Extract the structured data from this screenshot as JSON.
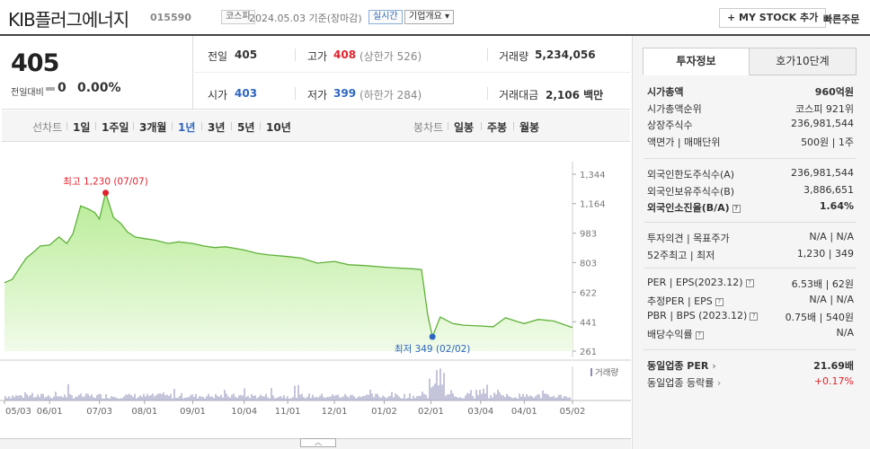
{
  "header": {
    "name": "KIB플러그에너지",
    "code": "015590",
    "market_tag": "코스피",
    "date": "2024.05.03",
    "date_suffix": "기준(장마감)",
    "live_tag": "실시간",
    "company_dropdown": "기업개요",
    "my_stock_button": "+ MY STOCK 추가",
    "quick_order": "빠른주문"
  },
  "quote": {
    "price": "405",
    "diff_label": "전일대비",
    "diff_value": "0",
    "diff_pct": "0.00%",
    "prev_label": "전일",
    "prev_value": "405",
    "high_label": "고가",
    "high_value": "408",
    "high_limit": "(상한가 526)",
    "volume_label": "거래량",
    "volume_value": "5,234,056",
    "open_label": "시가",
    "open_value": "403",
    "low_label": "저가",
    "low_value": "399",
    "low_limit": "(하한가 284)",
    "amount_label": "거래대금",
    "amount_value": "2,106 백만"
  },
  "period_tabs": {
    "line_label": "선차트",
    "line_items": [
      "1일",
      "1주일",
      "3개월",
      "1년",
      "3년",
      "5년",
      "10년"
    ],
    "selected": "1년",
    "candle_label": "봉차트",
    "candle_items": [
      "일봉",
      "주봉",
      "월봉"
    ]
  },
  "chart_data": {
    "type": "area",
    "title": "",
    "x_ticks": [
      "05/03",
      "06/01",
      "07/03",
      "08/01",
      "09/01",
      "10/04",
      "11/01",
      "12/01",
      "01/02",
      "02/01",
      "03/04",
      "04/01",
      "05/02"
    ],
    "y_ticks": [
      "1,344",
      "1,164",
      "983",
      "803",
      "622",
      "441",
      "261"
    ],
    "ylim": [
      261,
      1344
    ],
    "volume_label": "거래량",
    "max_label": "최고 1,230 (07/07)",
    "min_label": "최저 349 (02/02)",
    "max_value": 1230,
    "min_value": 349,
    "color_line": "#5fb13a",
    "color_fill_top": "#b8ec96",
    "color_fill_bottom": "#f1fbe9",
    "price_series": [
      [
        "2023-05-03",
        680
      ],
      [
        "2023-05-08",
        700
      ],
      [
        "2023-05-12",
        760
      ],
      [
        "2023-05-17",
        830
      ],
      [
        "2023-05-22",
        870
      ],
      [
        "2023-05-26",
        905
      ],
      [
        "2023-06-01",
        910
      ],
      [
        "2023-06-07",
        960
      ],
      [
        "2023-06-12",
        920
      ],
      [
        "2023-06-16",
        980
      ],
      [
        "2023-06-21",
        1150
      ],
      [
        "2023-06-26",
        1130
      ],
      [
        "2023-06-30",
        1110
      ],
      [
        "2023-07-03",
        1070
      ],
      [
        "2023-07-07",
        1230
      ],
      [
        "2023-07-12",
        1080
      ],
      [
        "2023-07-17",
        1040
      ],
      [
        "2023-07-21",
        990
      ],
      [
        "2023-07-26",
        960
      ],
      [
        "2023-08-01",
        950
      ],
      [
        "2023-08-08",
        940
      ],
      [
        "2023-08-16",
        920
      ],
      [
        "2023-08-23",
        930
      ],
      [
        "2023-09-01",
        920
      ],
      [
        "2023-09-08",
        905
      ],
      [
        "2023-09-15",
        895
      ],
      [
        "2023-09-22",
        900
      ],
      [
        "2023-10-04",
        880
      ],
      [
        "2023-10-12",
        860
      ],
      [
        "2023-10-20",
        850
      ],
      [
        "2023-11-01",
        840
      ],
      [
        "2023-11-10",
        830
      ],
      [
        "2023-11-20",
        800
      ],
      [
        "2023-12-01",
        810
      ],
      [
        "2023-12-10",
        790
      ],
      [
        "2023-12-20",
        785
      ],
      [
        "2024-01-02",
        775
      ],
      [
        "2024-01-10",
        770
      ],
      [
        "2024-01-20",
        765
      ],
      [
        "2024-01-26",
        760
      ],
      [
        "2024-01-30",
        480
      ],
      [
        "2024-02-02",
        349
      ],
      [
        "2024-02-07",
        470
      ],
      [
        "2024-02-15",
        430
      ],
      [
        "2024-02-22",
        420
      ],
      [
        "2024-03-04",
        415
      ],
      [
        "2024-03-12",
        410
      ],
      [
        "2024-03-20",
        465
      ],
      [
        "2024-03-28",
        440
      ],
      [
        "2024-04-01",
        430
      ],
      [
        "2024-04-10",
        455
      ],
      [
        "2024-04-20",
        445
      ],
      [
        "2024-05-02",
        405
      ]
    ]
  },
  "side": {
    "tab_active": "투자정보",
    "tab_inactive": "호가10단계",
    "rows_a": [
      {
        "label": "시가총액",
        "value": "960억원",
        "bold": true
      },
      {
        "label": "시가총액순위",
        "value": "코스피  921위"
      },
      {
        "label": "상장주식수",
        "value": "236,981,544"
      },
      {
        "label": "액면가 | 매매단위",
        "value": "500원 | 1주"
      }
    ],
    "rows_b": [
      {
        "label": "외국인한도주식수(A)",
        "value": "236,981,544"
      },
      {
        "label": "외국인보유주식수(B)",
        "value": "3,886,651"
      },
      {
        "label": "외국인소진율(B/A)",
        "value": "1.64%",
        "bold": true
      }
    ],
    "rows_c": [
      {
        "label": "투자의견 | 목표주가",
        "value": "N/A | N/A"
      },
      {
        "label": "52주최고 | 최저",
        "value": "1,230 | 349"
      }
    ],
    "rows_d": [
      {
        "label": "PER | EPS(2023.12)",
        "value": "6.53배 | 62원"
      },
      {
        "label": "추정PER | EPS",
        "value": "N/A | N/A"
      },
      {
        "label": "PBR | BPS (2023.12)",
        "value": "0.75배 | 540원"
      },
      {
        "label": "배당수익률",
        "value": "N/A"
      }
    ],
    "rows_e": [
      {
        "label": "동일업종 PER",
        "value": "21.69배",
        "bold": true
      },
      {
        "label": "동일업종 등락률",
        "value": "+0.17%",
        "red": true
      }
    ]
  }
}
